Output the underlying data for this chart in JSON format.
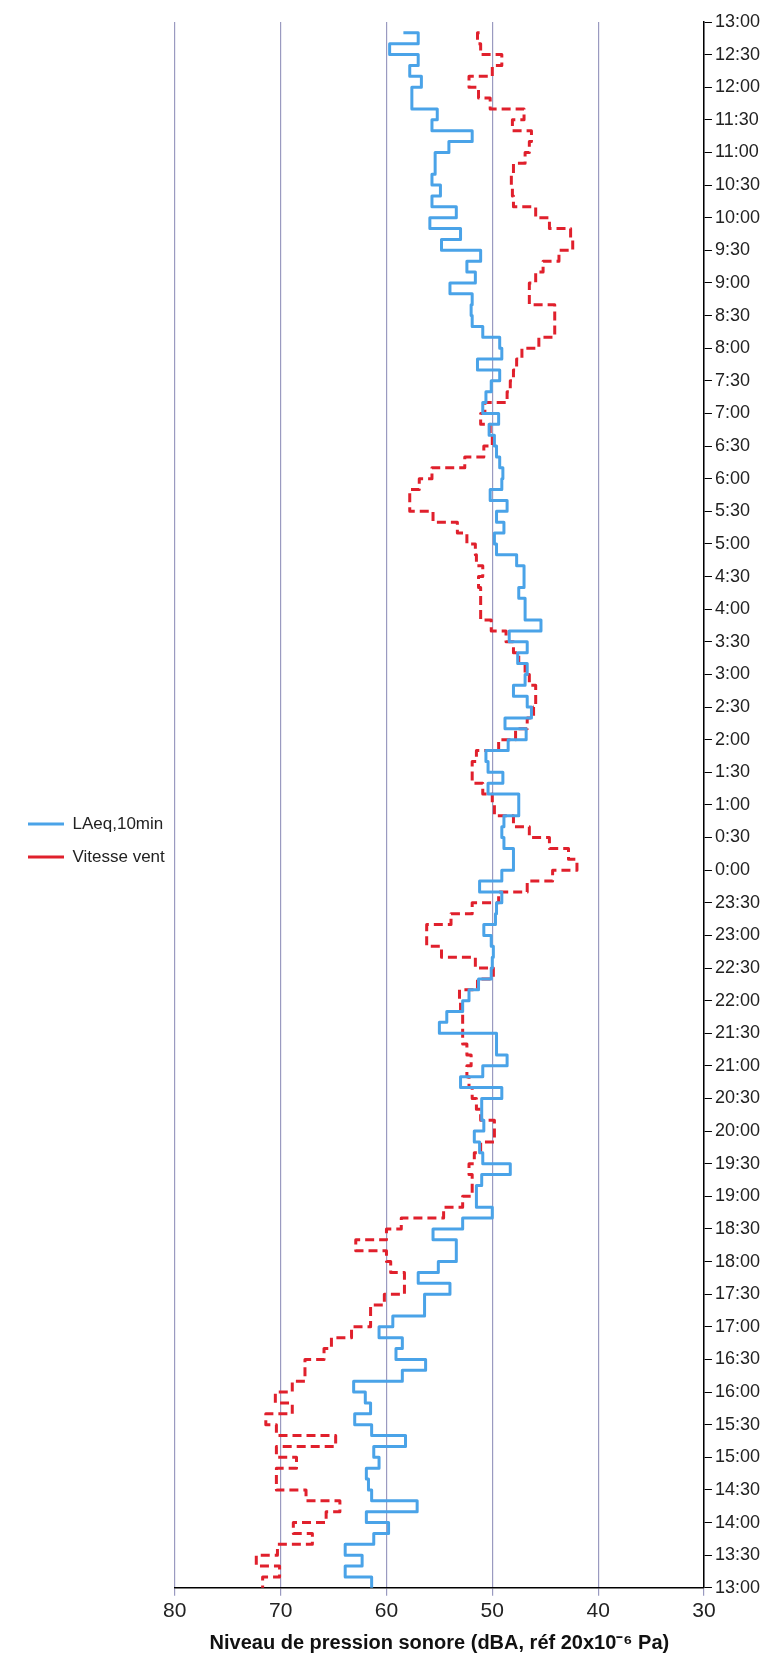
{
  "chart_data": {
    "type": "step",
    "orientation": "horizontal",
    "xlabel": "Niveau de pression sonore (dBA, réf 20x10⁻⁶ Pa)",
    "categories": [
      "13:00",
      null,
      null,
      "12:30",
      null,
      null,
      "12:00",
      null,
      null,
      "11:30",
      null,
      null,
      "11:00",
      null,
      null,
      "10:30",
      null,
      null,
      "10:00",
      null,
      null,
      "9:30",
      null,
      null,
      "9:00",
      null,
      null,
      "8:30",
      null,
      null,
      "8:00",
      null,
      null,
      "7:30",
      null,
      null,
      "7:00",
      null,
      null,
      "6:30",
      null,
      null,
      "6:00",
      null,
      null,
      "5:30",
      null,
      null,
      "5:00",
      null,
      null,
      "4:30",
      null,
      null,
      "4:00",
      null,
      null,
      "3:30",
      null,
      null,
      "3:00",
      null,
      null,
      "2:30",
      null,
      null,
      "2:00",
      null,
      null,
      "1:30",
      null,
      null,
      "1:00",
      null,
      null,
      "0:30",
      null,
      null,
      "0:00",
      null,
      null,
      "23:30",
      null,
      null,
      "23:00",
      null,
      null,
      "22:30",
      null,
      null,
      "22:00",
      null,
      null,
      "21:30",
      null,
      null,
      "21:00",
      null,
      null,
      "20:30",
      null,
      null,
      "20:00",
      null,
      null,
      "19:30",
      null,
      null,
      "19:00",
      null,
      null,
      "18:30",
      null,
      null,
      "18:00",
      null,
      null,
      "17:30",
      null,
      null,
      "17:00",
      null,
      null,
      "16:30",
      null,
      null,
      "16:00",
      null,
      null,
      "15:30",
      null,
      null,
      "15:00",
      null,
      null,
      "14:30",
      null,
      null,
      "14:00",
      null,
      null,
      "13:30",
      null,
      null,
      "13:00"
    ],
    "xlim": [
      80,
      30
    ],
    "xticks": [
      80,
      70,
      60,
      50,
      40,
      30
    ],
    "grid": "x",
    "legend": "left",
    "series": [
      {
        "name": "LAeq,10min",
        "color": "#4aa3e8",
        "line_style": "solid",
        "values": [
          null,
          58.4,
          57.0,
          59.7,
          57.0,
          57.8,
          56.7,
          57.6,
          57.6,
          55.2,
          55.7,
          51.9,
          54.1,
          55.4,
          55.4,
          55.7,
          54.9,
          55.7,
          53.4,
          55.9,
          53.0,
          54.8,
          51.1,
          52.4,
          51.6,
          54.0,
          51.9,
          52.0,
          51.9,
          50.9,
          49.3,
          49.1,
          51.4,
          49.3,
          50.1,
          50.6,
          50.9,
          49.4,
          50.3,
          49.8,
          49.6,
          49.3,
          49.0,
          49.1,
          50.2,
          48.6,
          49.6,
          48.9,
          49.8,
          49.6,
          47.7,
          47.0,
          47.0,
          47.5,
          46.9,
          46.9,
          45.4,
          48.4,
          46.7,
          47.6,
          46.7,
          46.9,
          48.0,
          46.7,
          46.3,
          48.8,
          46.8,
          48.5,
          50.6,
          50.4,
          49.0,
          50.4,
          47.5,
          47.5,
          48.9,
          49.1,
          48.9,
          48.0,
          48.0,
          49.1,
          51.2,
          49.1,
          49.6,
          49.7,
          50.8,
          50.1,
          49.9,
          50.0,
          50.1,
          51.3,
          52.2,
          52.8,
          54.3,
          55.0,
          49.6,
          49.6,
          48.6,
          50.9,
          53.0,
          49.1,
          51.0,
          51.0,
          50.8,
          51.7,
          51.2,
          50.9,
          48.3,
          51.0,
          51.5,
          51.5,
          50.0,
          52.8,
          55.6,
          53.4,
          53.4,
          55.1,
          57.0,
          54.0,
          56.4,
          56.4,
          59.4,
          60.7,
          58.5,
          59.1,
          56.3,
          58.5,
          63.1,
          62.0,
          61.5,
          63.0,
          61.4,
          58.2,
          61.2,
          60.7,
          61.9,
          61.7,
          61.4,
          57.1,
          61.9,
          59.8,
          61.2,
          63.9,
          62.3,
          63.9,
          61.4
        ]
      },
      {
        "name": "Vitesse vent",
        "color": "#e0202c",
        "line_style": "dashed",
        "values": [
          null,
          51.2,
          51.4,
          51.1,
          49.1,
          50.0,
          52.2,
          51.3,
          50.2,
          47.0,
          48.1,
          46.3,
          46.5,
          46.9,
          48.0,
          48.2,
          48.1,
          48.0,
          45.9,
          44.6,
          42.6,
          42.4,
          43.7,
          45.2,
          45.9,
          46.5,
          46.5,
          44.1,
          44.1,
          44.1,
          45.6,
          47.2,
          47.7,
          48.0,
          48.3,
          48.6,
          50.7,
          51.1,
          50.2,
          50.0,
          50.8,
          52.6,
          55.7,
          56.9,
          57.8,
          57.8,
          55.6,
          53.3,
          52.4,
          51.6,
          51.5,
          50.9,
          51.3,
          51.1,
          51.1,
          51.1,
          50.1,
          48.7,
          48.0,
          47.5,
          46.9,
          46.5,
          45.9,
          45.9,
          46.1,
          46.7,
          47.8,
          49.4,
          51.5,
          51.9,
          51.9,
          50.9,
          50.0,
          49.8,
          48.0,
          46.5,
          44.6,
          42.8,
          42.0,
          44.3,
          46.7,
          49.4,
          51.9,
          53.9,
          56.2,
          56.2,
          54.8,
          51.6,
          49.9,
          51.4,
          53.1,
          53.0,
          52.8,
          52.8,
          52.8,
          52.4,
          52.0,
          52.4,
          52.2,
          51.9,
          51.5,
          51.1,
          49.8,
          49.8,
          51.1,
          51.7,
          52.2,
          51.9,
          51.9,
          52.8,
          54.6,
          58.6,
          60.0,
          62.9,
          60.0,
          59.6,
          58.3,
          58.3,
          60.2,
          61.5,
          61.5,
          63.3,
          65.2,
          65.9,
          67.7,
          67.7,
          68.9,
          70.5,
          68.9,
          71.4,
          70.4,
          64.8,
          70.4,
          68.5,
          70.4,
          70.4,
          67.6,
          64.4,
          65.7,
          68.8,
          67.0,
          70.3,
          72.3,
          70.1,
          71.7
        ]
      }
    ]
  }
}
